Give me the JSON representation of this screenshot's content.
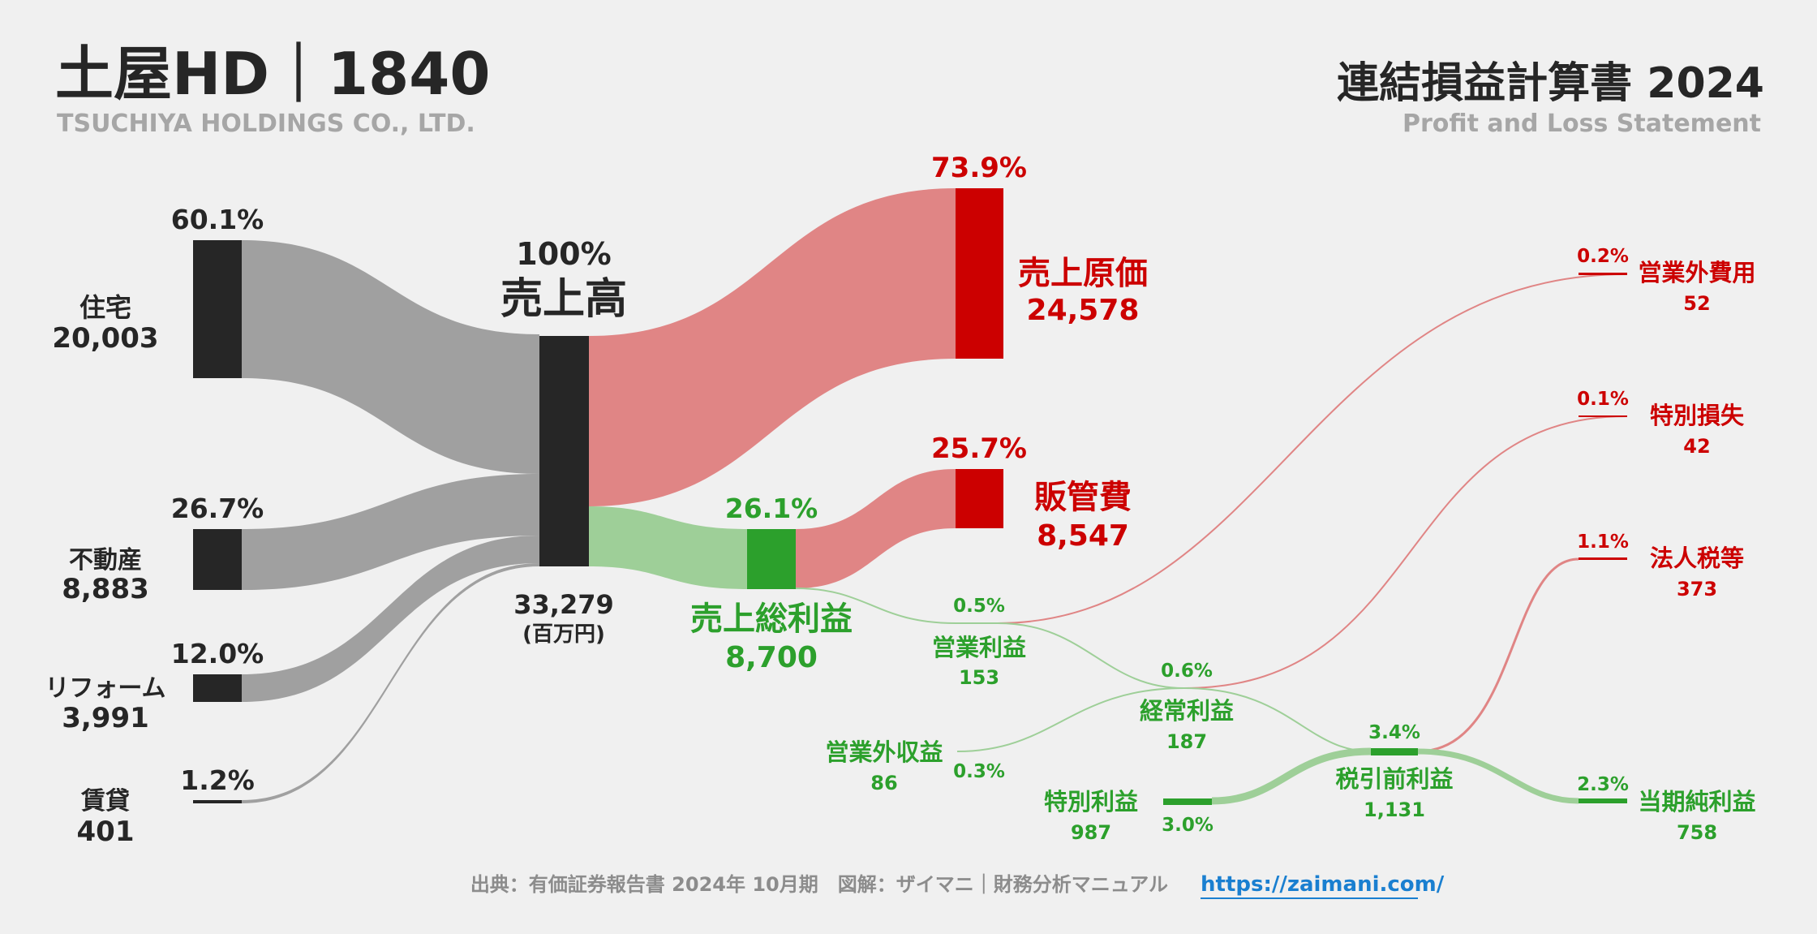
{
  "header": {
    "title": "土屋HD｜1840",
    "subtitle": "TSUCHIYA HOLDINGS CO., LTD.",
    "right_title": "連結損益計算書 2024",
    "right_subtitle": "Profit and Loss Statement"
  },
  "footer": {
    "source": "出典：有価証券報告書 2024年 10月期　図解：ザイマニ｜財務分析マニュアル",
    "url": "https://zaimani.com/"
  },
  "colors": {
    "dark": "#262626",
    "grey_flow": "#a0a0a0",
    "red": "#cc0000",
    "red_flow": "#e08585",
    "green": "#2ca02c",
    "green_flow": "#9ecf98",
    "background": "#f0f0f0"
  },
  "nodes": {
    "housing": {
      "label": "住宅",
      "value": "20,003",
      "pct": "60.1%"
    },
    "realestate": {
      "label": "不動産",
      "value": "8,883",
      "pct": "26.7%"
    },
    "reform": {
      "label": "リフォーム",
      "value": "3,991",
      "pct": "12.0%"
    },
    "rental": {
      "label": "賃貸",
      "value": "401",
      "pct": "1.2%"
    },
    "revenue": {
      "label": "売上高",
      "value": "33,279",
      "unit": "(百万円)",
      "pct": "100%"
    },
    "cogs": {
      "label": "売上原価",
      "value": "24,578",
      "pct": "73.9%"
    },
    "gross_profit": {
      "label": "売上総利益",
      "value": "8,700",
      "pct": "26.1%"
    },
    "sga": {
      "label": "販管費",
      "value": "8,547",
      "pct": "25.7%"
    },
    "operating_income": {
      "label": "営業利益",
      "value": "153",
      "pct": "0.5%"
    },
    "non_op_income": {
      "label": "営業外収益",
      "value": "86",
      "pct": "0.3%"
    },
    "non_op_expense": {
      "label": "営業外費用",
      "value": "52",
      "pct": "0.2%"
    },
    "ordinary_income": {
      "label": "経常利益",
      "value": "187",
      "pct": "0.6%"
    },
    "extraordinary_income": {
      "label": "特別利益",
      "value": "987",
      "pct": "3.0%"
    },
    "extraordinary_loss": {
      "label": "特別損失",
      "value": "42",
      "pct": "0.1%"
    },
    "pretax_income": {
      "label": "税引前利益",
      "value": "1,131",
      "pct": "3.4%"
    },
    "income_tax": {
      "label": "法人税等",
      "value": "373",
      "pct": "1.1%"
    },
    "net_income": {
      "label": "当期純利益",
      "value": "758",
      "pct": "2.3%"
    }
  }
}
